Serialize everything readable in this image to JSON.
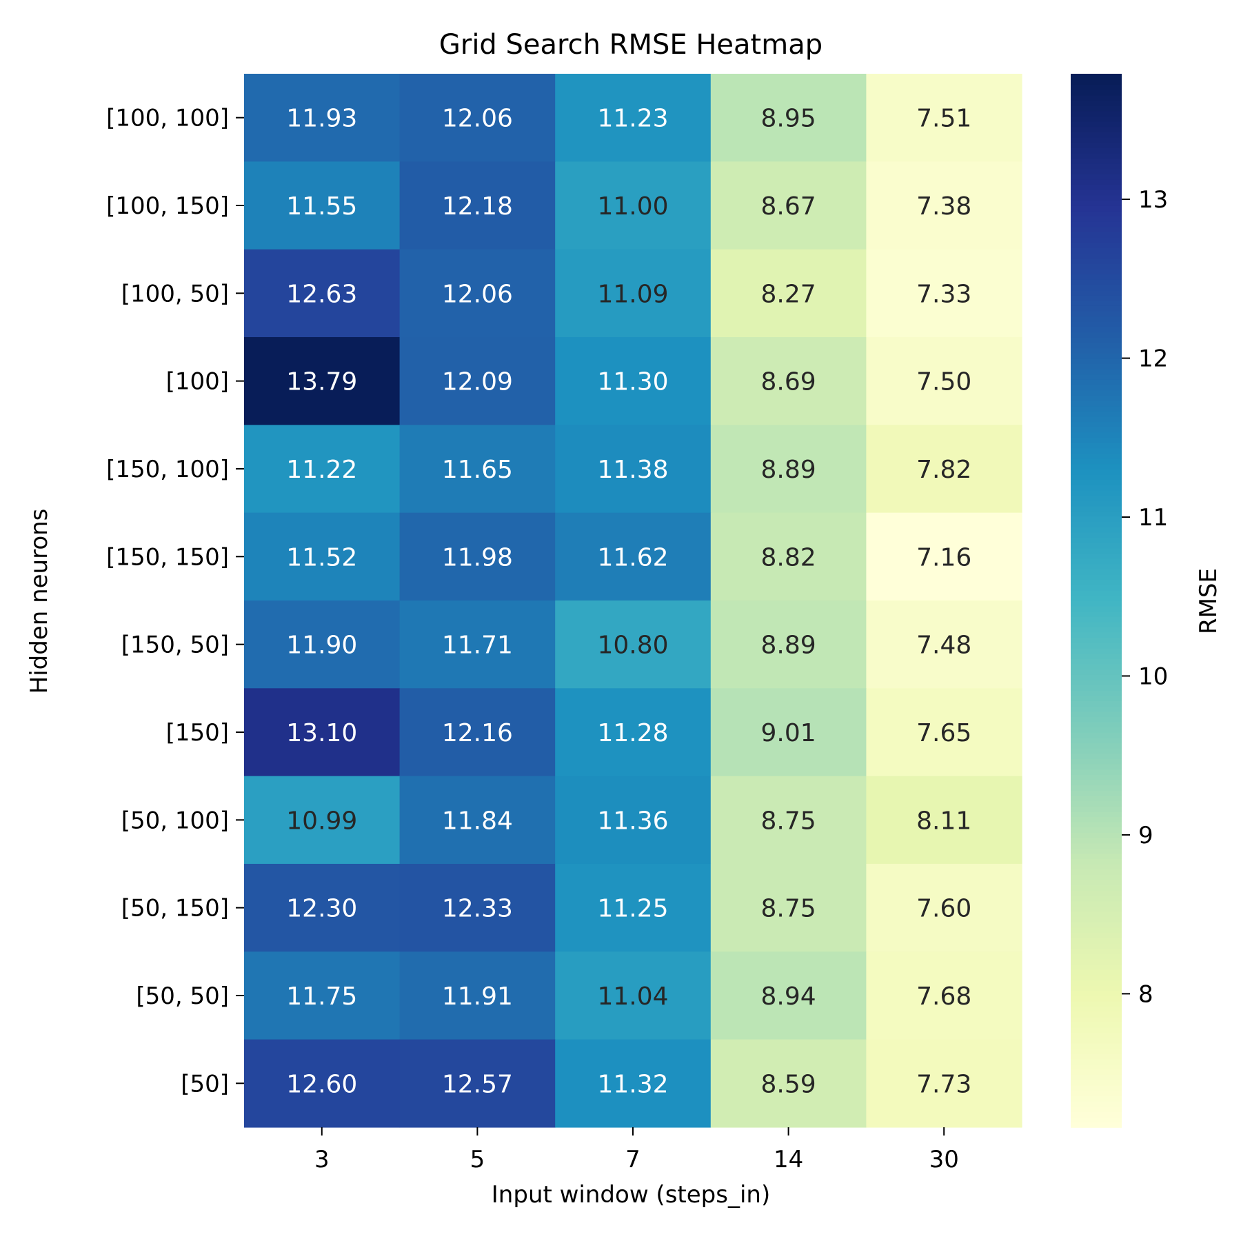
{
  "chart_data": {
    "type": "heatmap",
    "title": "Grid Search RMSE Heatmap",
    "xlabel": "Input window (steps_in)",
    "ylabel": "Hidden neurons",
    "x_categories": [
      "3",
      "5",
      "7",
      "14",
      "30"
    ],
    "y_categories": [
      "[100, 100]",
      "[100, 150]",
      "[100, 50]",
      "[100]",
      "[150, 100]",
      "[150, 150]",
      "[150, 50]",
      "[150]",
      "[50, 100]",
      "[50, 150]",
      "[50, 50]",
      "[50]"
    ],
    "values": [
      [
        11.93,
        12.06,
        11.23,
        8.95,
        7.51
      ],
      [
        11.55,
        12.18,
        11.0,
        8.67,
        7.38
      ],
      [
        12.63,
        12.06,
        11.09,
        8.27,
        7.33
      ],
      [
        13.79,
        12.09,
        11.3,
        8.69,
        7.5
      ],
      [
        11.22,
        11.65,
        11.38,
        8.89,
        7.82
      ],
      [
        11.52,
        11.98,
        11.62,
        8.82,
        7.16
      ],
      [
        11.9,
        11.71,
        10.8,
        8.89,
        7.48
      ],
      [
        13.1,
        12.16,
        11.28,
        9.01,
        7.65
      ],
      [
        10.99,
        11.84,
        11.36,
        8.75,
        8.11
      ],
      [
        12.3,
        12.33,
        11.25,
        8.75,
        7.6
      ],
      [
        11.75,
        11.91,
        11.04,
        8.94,
        7.68
      ],
      [
        12.6,
        12.57,
        11.32,
        8.59,
        7.73
      ]
    ],
    "value_format_decimals": 2,
    "colorbar": {
      "label": "RMSE",
      "vmin": 7.16,
      "vmax": 13.79,
      "ticks": [
        "8",
        "9",
        "10",
        "11",
        "12",
        "13"
      ],
      "colormap": "YlGnBu",
      "colors": [
        "#ffffd9",
        "#edf8b1",
        "#c7e9b4",
        "#7fcdbb",
        "#41b6c4",
        "#1d91c0",
        "#225ea8",
        "#253494",
        "#081d58"
      ]
    },
    "annotation_colors": {
      "light": "#ffffff",
      "dark": "#262626"
    }
  }
}
